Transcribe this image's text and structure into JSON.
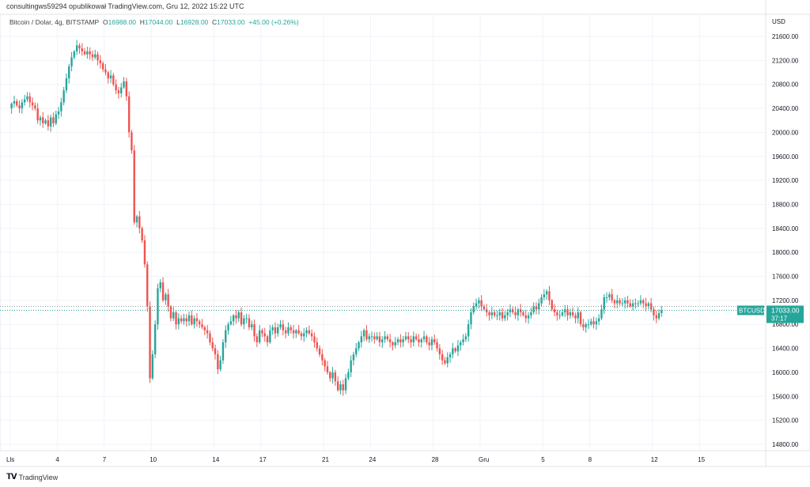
{
  "header": {
    "published": "consultingws59294 opublikował TradingView.com, Gru 12, 2022 15:22 UTC",
    "symbol": "Bitcoin / Dolar, 4g, BITSTAMP",
    "o_label": "O",
    "o": "16988.00",
    "h_label": "H",
    "h": "17044.00",
    "l_label": "L",
    "l": "16928.00",
    "c_label": "C",
    "c": "17033.00",
    "change": "+45.00 (+0.26%)"
  },
  "footer": {
    "brand": "TradingView",
    "logo_text": "TV"
  },
  "chart_data": {
    "type": "candlestick",
    "interval": "4h",
    "ylabel": "USD",
    "ylim": [
      14600,
      21800
    ],
    "yticks": [
      "21600.00",
      "21200.00",
      "20800.00",
      "20400.00",
      "20000.00",
      "19600.00",
      "19200.00",
      "18800.00",
      "18400.00",
      "18000.00",
      "17600.00",
      "17200.00",
      "16800.00",
      "16400.00",
      "16000.00",
      "15600.00",
      "15200.00",
      "14800.00"
    ],
    "xticks": [
      {
        "label": "Lls",
        "day": 0
      },
      {
        "label": "4",
        "day": 3
      },
      {
        "label": "7",
        "day": 6
      },
      {
        "label": "10",
        "day": 9
      },
      {
        "label": "14",
        "day": 13
      },
      {
        "label": "17",
        "day": 16
      },
      {
        "label": "21",
        "day": 20
      },
      {
        "label": "24",
        "day": 23
      },
      {
        "label": "28",
        "day": 27
      },
      {
        "label": "Gru",
        "day": 30
      },
      {
        "label": "5",
        "day": 34
      },
      {
        "label": "8",
        "day": 37
      },
      {
        "label": "12",
        "day": 41
      },
      {
        "label": "15",
        "day": 44
      }
    ],
    "first_open": 20400,
    "closes": [
      20480,
      20520,
      20450,
      20400,
      20500,
      20550,
      20600,
      20500,
      20450,
      20400,
      20200,
      20250,
      20150,
      20200,
      20100,
      20250,
      20150,
      20300,
      20350,
      20500,
      20700,
      20900,
      21100,
      21250,
      21350,
      21450,
      21400,
      21350,
      21300,
      21350,
      21300,
      21250,
      21300,
      21200,
      21150,
      21050,
      21000,
      20900,
      20950,
      20800,
      20700,
      20650,
      20750,
      20850,
      20600,
      20000,
      19700,
      18500,
      18600,
      18400,
      18200,
      17800,
      17100,
      15900,
      16300,
      16800,
      17400,
      17500,
      17200,
      17300,
      17100,
      16900,
      17000,
      16800,
      16900,
      16850,
      16900,
      16850,
      16950,
      16800,
      16900,
      16850,
      16800,
      16750,
      16700,
      16650,
      16500,
      16400,
      16300,
      16050,
      16200,
      16500,
      16700,
      16800,
      16850,
      16950,
      16900,
      17000,
      16800,
      16900,
      16900,
      16750,
      16800,
      16600,
      16500,
      16700,
      16650,
      16600,
      16500,
      16700,
      16750,
      16650,
      16750,
      16800,
      16700,
      16650,
      16750,
      16700,
      16650,
      16700,
      16650,
      16600,
      16650,
      16700,
      16650,
      16600,
      16500,
      16400,
      16300,
      16200,
      16100,
      16000,
      15900,
      16000,
      15850,
      15700,
      15800,
      15700,
      15900,
      16000,
      16200,
      16300,
      16400,
      16500,
      16600,
      16700,
      16550,
      16600,
      16600,
      16550,
      16600,
      16500,
      16550,
      16600,
      16550,
      16500,
      16450,
      16500,
      16550,
      16500,
      16550,
      16600,
      16550,
      16500,
      16600,
      16550,
      16500,
      16550,
      16600,
      16500,
      16450,
      16550,
      16500,
      16400,
      16300,
      16200,
      16150,
      16250,
      16300,
      16400,
      16350,
      16450,
      16500,
      16550,
      16600,
      16800,
      17000,
      17100,
      17150,
      17200,
      17100,
      17050,
      17000,
      16950,
      17000,
      16950,
      16950,
      17000,
      16900,
      16950,
      17000,
      17050,
      17000,
      16950,
      17050,
      17000,
      16950,
      16900,
      16950,
      17000,
      17100,
      17050,
      17150,
      17250,
      17300,
      17350,
      17200,
      17050,
      17000,
      16950,
      16950,
      17000,
      17050,
      16950,
      17000,
      16950,
      16900,
      17000,
      16800,
      16750,
      16800,
      16800,
      16850,
      16800,
      16850,
      16900,
      17050,
      17250,
      17250,
      17300,
      17200,
      17150,
      17200,
      17150,
      17150,
      17200,
      17150,
      17100,
      17150,
      17150,
      17150,
      17200,
      17150,
      17100,
      17150,
      17050,
      16950,
      16900,
      16988,
      17033
    ],
    "last_price": 17033.0,
    "last_price_label": "17033.00",
    "countdown": "37:17",
    "symbol_tag": "BTCUSD",
    "secondary_line_price": 17100,
    "grid": true,
    "colors": {
      "up": "#26a69a",
      "down": "#ef5350",
      "grid": "#f0f3fa",
      "axis_text": "#131722"
    }
  }
}
